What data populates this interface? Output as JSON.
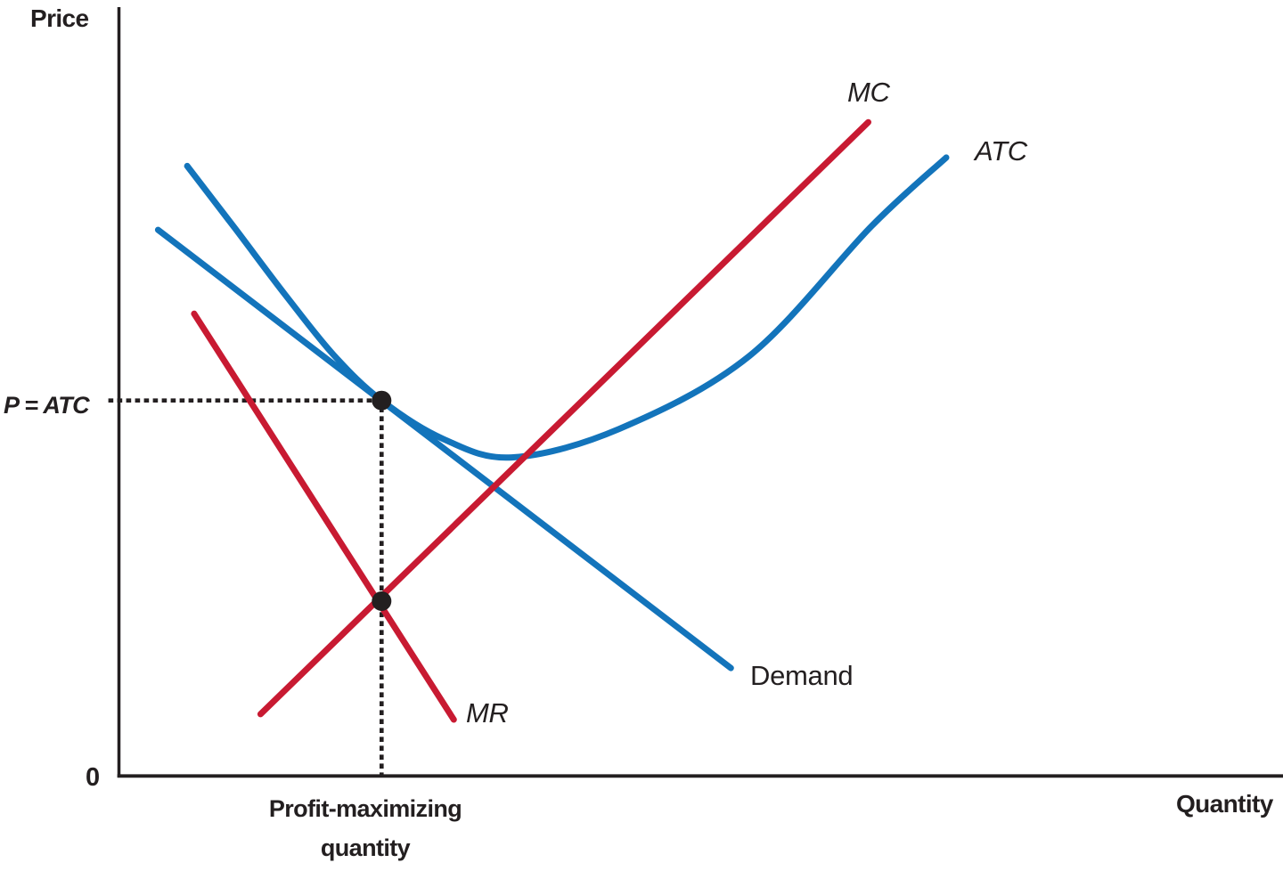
{
  "figure": {
    "y_axis_label": "Price",
    "x_axis_label": "Quantity",
    "origin_label": "0",
    "price_annotation": "P = ATC",
    "quantity_annotation_line1": "Profit-maximizing",
    "quantity_annotation_line2": "quantity",
    "curve_labels": {
      "mc": "MC",
      "atc": "ATC",
      "mr": "MR",
      "demand": "Demand"
    }
  },
  "colors": {
    "red": "#c81a32",
    "blue": "#1374bb",
    "ink": "#231f20"
  },
  "chart_data": {
    "type": "line",
    "title": "",
    "xlabel": "Quantity",
    "ylabel": "Price",
    "axis_numeric_ticks": false,
    "grid": false,
    "legend_position": "inline curve labels",
    "units_note": "no numeric scale shown; coordinates normalized 0-100 from origin",
    "xlim": [
      0,
      100
    ],
    "ylim": [
      0,
      100
    ],
    "series": [
      {
        "name": "ATC",
        "label": "ATC",
        "color": "blue",
        "shape": "u-curve",
        "smooth": true,
        "points": [
          [
            5.9,
            79.3
          ],
          [
            10.0,
            71.2
          ],
          [
            14.3,
            62.6
          ],
          [
            18.5,
            54.7
          ],
          [
            22.6,
            48.8
          ],
          [
            27.9,
            43.8
          ],
          [
            33.8,
            41.4
          ],
          [
            43.0,
            45.1
          ],
          [
            54.2,
            54.6
          ],
          [
            64.7,
            71.5
          ],
          [
            71.1,
            80.4
          ]
        ]
      },
      {
        "name": "Demand",
        "label": "Demand",
        "color": "blue",
        "shape": "straight",
        "smooth": false,
        "points": [
          [
            3.4,
            71.0
          ],
          [
            52.6,
            14.0
          ]
        ]
      },
      {
        "name": "MC",
        "label": "MC",
        "color": "red",
        "shape": "straight",
        "smooth": false,
        "points": [
          [
            12.2,
            8.0
          ],
          [
            64.4,
            85.0
          ]
        ]
      },
      {
        "name": "MR",
        "label": "MR",
        "color": "red",
        "shape": "straight",
        "smooth": false,
        "points": [
          [
            6.5,
            60.1
          ],
          [
            28.8,
            7.3
          ]
        ]
      }
    ],
    "markers": [
      {
        "name": "tangency-point",
        "x": 22.6,
        "y": 48.8
      },
      {
        "name": "mr-mc-intersection-point",
        "x": 22.6,
        "y": 22.7
      }
    ],
    "guides": [
      {
        "name": "price-guide-dotted",
        "points": [
          [
            -0.7,
            48.8
          ],
          [
            22.6,
            48.8
          ]
        ]
      },
      {
        "name": "quantity-guide-dotted",
        "points": [
          [
            22.6,
            48.8
          ],
          [
            22.6,
            -0.9
          ]
        ]
      }
    ]
  }
}
